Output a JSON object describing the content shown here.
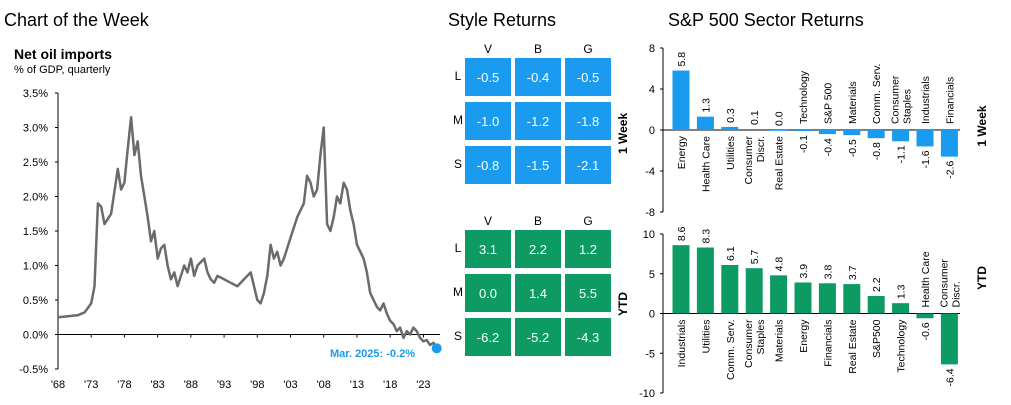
{
  "header": {
    "chart_of_week": "Chart of the Week",
    "style_returns": "Style Returns",
    "sector_returns": "S&P 500 Sector Returns"
  },
  "colors": {
    "line": "#6b6b6b",
    "blue": "#1a9bef",
    "green": "#0e9b63",
    "dot": "#1a9bef",
    "annot": "#1a9bef"
  },
  "chart_data": [
    {
      "type": "line",
      "title": "Net oil imports",
      "subtitle": "% of GDP, quarterly",
      "annotation": "Mar. 2025: -0.2%",
      "ylim": [
        -0.5,
        3.5
      ],
      "y_ticks": [
        "3.5%",
        "3.0%",
        "2.5%",
        "2.0%",
        "1.5%",
        "1.0%",
        "0.5%",
        "0.0%",
        "-0.5%"
      ],
      "x_ticks": [
        "'68",
        "'73",
        "'78",
        "'83",
        "'88",
        "'93",
        "'98",
        "'03",
        "'08",
        "'13",
        "'18",
        "'23"
      ],
      "x_tick_years": [
        1968,
        1973,
        1978,
        1983,
        1988,
        1993,
        1998,
        2003,
        2008,
        2013,
        2018,
        2023
      ],
      "xlim": [
        1968,
        2025.5
      ],
      "x": [
        1968,
        1969,
        1970,
        1971,
        1972,
        1973,
        1973.5,
        1974,
        1974.5,
        1975,
        1976,
        1977,
        1977.5,
        1978,
        1978.5,
        1979,
        1979.5,
        1980,
        1980.5,
        1981,
        1981.5,
        1982,
        1982.5,
        1983,
        1983.5,
        1984,
        1984.5,
        1985,
        1985.5,
        1986,
        1986.5,
        1987,
        1987.5,
        1988,
        1988.5,
        1989,
        1989.5,
        1990,
        1990.5,
        1991,
        1991.5,
        1992,
        1993,
        1994,
        1995,
        1996,
        1997,
        1997.5,
        1998,
        1998.5,
        1999,
        1999.5,
        2000,
        2000.5,
        2001,
        2001.5,
        2002,
        2003,
        2004,
        2005,
        2005.5,
        2006,
        2006.5,
        2007,
        2007.5,
        2008,
        2008.5,
        2009,
        2009.5,
        2010,
        2010.5,
        2011,
        2011.5,
        2012,
        2012.5,
        2013,
        2013.5,
        2014,
        2014.5,
        2015,
        2015.5,
        2016,
        2016.5,
        2017,
        2017.5,
        2018,
        2018.5,
        2019,
        2019.5,
        2020,
        2020.5,
        2021,
        2021.5,
        2022,
        2022.5,
        2023,
        2023.5,
        2024,
        2024.5,
        2025
      ],
      "y": [
        0.25,
        0.26,
        0.27,
        0.28,
        0.32,
        0.45,
        0.7,
        1.9,
        1.85,
        1.6,
        1.75,
        2.4,
        2.1,
        2.2,
        2.7,
        3.15,
        2.6,
        2.8,
        2.3,
        2.0,
        1.7,
        1.35,
        1.5,
        1.1,
        1.25,
        1.3,
        1.0,
        0.8,
        0.9,
        0.7,
        0.85,
        1.0,
        0.9,
        1.1,
        0.85,
        1.0,
        1.05,
        1.1,
        0.9,
        0.8,
        0.75,
        0.85,
        0.8,
        0.75,
        0.7,
        0.8,
        0.9,
        0.7,
        0.5,
        0.45,
        0.6,
        0.85,
        1.3,
        1.1,
        1.2,
        1.0,
        1.1,
        1.4,
        1.7,
        1.9,
        2.3,
        2.2,
        2.0,
        2.1,
        2.6,
        3.0,
        1.6,
        1.5,
        1.7,
        2.0,
        1.9,
        2.2,
        2.1,
        1.8,
        1.6,
        1.3,
        1.2,
        1.1,
        0.9,
        0.6,
        0.5,
        0.4,
        0.35,
        0.45,
        0.3,
        0.2,
        0.15,
        0.05,
        0.1,
        -0.05,
        0.05,
        0.0,
        0.1,
        0.05,
        -0.05,
        -0.1,
        -0.08,
        -0.15,
        -0.12,
        -0.2
      ]
    },
    {
      "type": "heatmap",
      "title": "Style Returns",
      "columns": [
        "V",
        "B",
        "G"
      ],
      "rows": [
        "L",
        "M",
        "S"
      ],
      "panels": [
        {
          "label": "1 Week",
          "color": "blue",
          "values": [
            [
              "-0.5",
              "-0.4",
              "-0.5"
            ],
            [
              "-1.0",
              "-1.2",
              "-1.8"
            ],
            [
              "-0.8",
              "-1.5",
              "-2.1"
            ]
          ]
        },
        {
          "label": "YTD",
          "color": "green",
          "values": [
            [
              "3.1",
              "2.2",
              "1.2"
            ],
            [
              "0.0",
              "1.4",
              "5.5"
            ],
            [
              "-6.2",
              "-5.2",
              "-4.3"
            ]
          ]
        }
      ]
    },
    {
      "type": "bar",
      "title": "S&P 500 Sector Returns",
      "panel_label": "1 Week",
      "ylim": [
        -8,
        8
      ],
      "y_ticks": [
        8,
        4,
        0,
        -4,
        -8
      ],
      "categories": [
        "Energy",
        "Health Care",
        "Utilities",
        "Consumer Discr.",
        "Real Estate",
        "Technology",
        "S&P 500",
        "Materials",
        "Comm. Serv.",
        "Consumer Staples",
        "Industrials",
        "Financials"
      ],
      "values": [
        5.8,
        1.3,
        0.3,
        0.1,
        0.0,
        -0.1,
        -0.4,
        -0.5,
        -0.8,
        -1.1,
        -1.6,
        -2.6
      ],
      "value_labels": [
        "5.8",
        "1.3",
        "0.3",
        "0.1",
        "0.0",
        "-0.1",
        "-0.4",
        "-0.5",
        "-0.8",
        "-1.1",
        "-1.6",
        "-2.6"
      ]
    },
    {
      "type": "bar",
      "title": "",
      "panel_label": "YTD",
      "ylim": [
        -10,
        10
      ],
      "y_ticks": [
        10,
        5,
        0,
        -5,
        -10
      ],
      "categories": [
        "Industrials",
        "Utilities",
        "Comm. Serv.",
        "Consumer Staples",
        "Materials",
        "Energy",
        "Financials",
        "Real Estate",
        "S&P500",
        "Technology",
        "Health Care",
        "Consumer Discr."
      ],
      "values": [
        8.6,
        8.3,
        6.1,
        5.7,
        4.8,
        3.9,
        3.8,
        3.7,
        2.2,
        1.3,
        -0.6,
        -6.4
      ],
      "value_labels": [
        "8.6",
        "8.3",
        "6.1",
        "5.7",
        "4.8",
        "3.9",
        "3.8",
        "3.7",
        "2.2",
        "1.3",
        "-0.6",
        "-6.4"
      ]
    }
  ]
}
